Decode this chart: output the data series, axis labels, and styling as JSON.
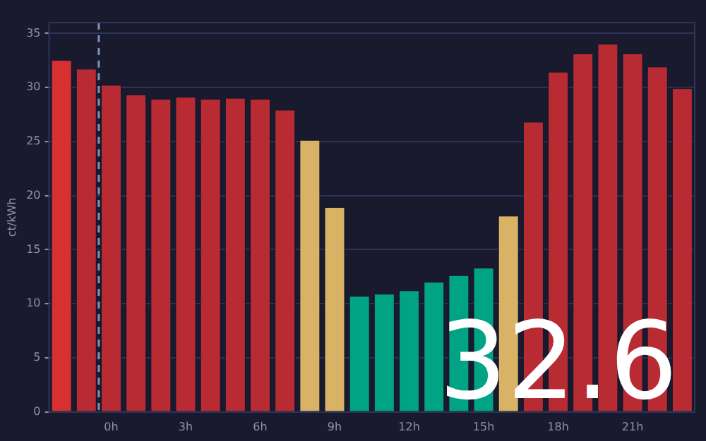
{
  "chart_data": {
    "type": "bar",
    "ylabel": "ct/kWh",
    "x": [
      -2,
      -1,
      0,
      1,
      2,
      3,
      4,
      5,
      6,
      7,
      8,
      9,
      10,
      11,
      12,
      13,
      14,
      15,
      16,
      17,
      18,
      19,
      20,
      21,
      22,
      23
    ],
    "values": [
      32.6,
      31.8,
      30.3,
      29.4,
      29.0,
      29.2,
      29.0,
      29.1,
      29.0,
      28.0,
      25.2,
      19.0,
      10.8,
      11.0,
      11.3,
      12.1,
      12.7,
      13.4,
      18.2,
      26.9,
      31.5,
      33.2,
      34.1,
      33.2,
      32.0,
      30.0
    ],
    "colors": [
      "#d63031",
      "#b92b33",
      "#b92b33",
      "#b92b33",
      "#b92b33",
      "#b92b33",
      "#b92b33",
      "#b92b33",
      "#b92b33",
      "#b92b33",
      "#d8b365",
      "#d8b365",
      "#00a383",
      "#00a383",
      "#00a383",
      "#00a383",
      "#00a383",
      "#00a383",
      "#d8b365",
      "#b92b33",
      "#b92b33",
      "#b92b33",
      "#b92b33",
      "#b92b33",
      "#b92b33",
      "#b92b33"
    ],
    "xlim": [
      -2.5,
      23.5
    ],
    "xticks": [
      {
        "value": 0,
        "label": "0h"
      },
      {
        "value": 3,
        "label": "3h"
      },
      {
        "value": 6,
        "label": "6h"
      },
      {
        "value": 9,
        "label": "9h"
      },
      {
        "value": 12,
        "label": "12h"
      },
      {
        "value": 15,
        "label": "15h"
      },
      {
        "value": 18,
        "label": "18h"
      },
      {
        "value": 21,
        "label": "21h"
      }
    ],
    "ylim": [
      0,
      36
    ],
    "yticks": [
      0,
      5,
      10,
      15,
      20,
      25,
      30,
      35
    ],
    "ref_lines": [
      {
        "axis": "x",
        "value": -0.5,
        "color": "#7f8fb8",
        "line_style": "dashed"
      }
    ],
    "annotations": [
      "32.6"
    ],
    "grid": "y",
    "legend": false
  }
}
